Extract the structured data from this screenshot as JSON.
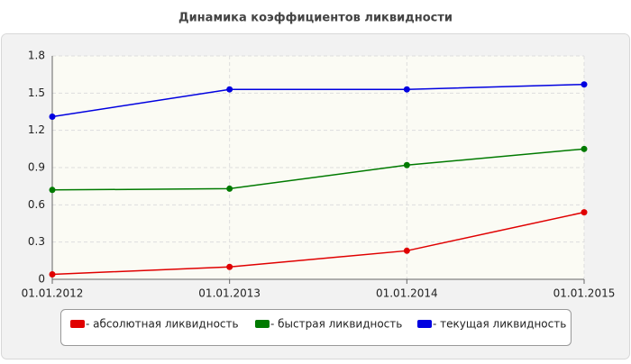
{
  "chart_data": {
    "type": "line",
    "title": "Динамика коэффициентов ликвидности",
    "categories": [
      "01.01.2012",
      "01.01.2013",
      "01.01.2014",
      "01.01.2015"
    ],
    "series": [
      {
        "name": "- абсолютная ликвидность",
        "color": "#e00000",
        "values": [
          0.04,
          0.1,
          0.23,
          0.54
        ]
      },
      {
        "name": "- быстрая ликвидность",
        "color": "#007a00",
        "values": [
          0.72,
          0.73,
          0.92,
          1.05
        ]
      },
      {
        "name": "- текущая ликвидность",
        "color": "#0000e0",
        "values": [
          1.31,
          1.53,
          1.53,
          1.57
        ]
      }
    ],
    "ylim": [
      0,
      1.8
    ],
    "yticks": [
      0,
      0.3,
      0.6,
      0.9,
      1.2,
      1.5,
      1.8
    ],
    "grid": true
  }
}
